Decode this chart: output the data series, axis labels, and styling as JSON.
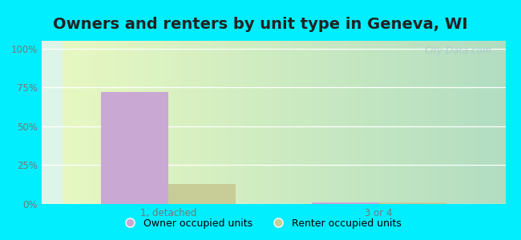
{
  "title": "Owners and renters by unit type in Geneva, WI",
  "categories": [
    "1, detached",
    "3 or 4"
  ],
  "owner_values": [
    72,
    1
  ],
  "renter_values": [
    13,
    1
  ],
  "owner_color": "#c9a8d4",
  "renter_color": "#c8cc96",
  "bg_top": "#e8faf0",
  "bg_bottom": "#d0f0e0",
  "outer_bg": "#00eeff",
  "yticks": [
    0,
    25,
    50,
    75,
    100
  ],
  "ytick_labels": [
    "0%",
    "25%",
    "50%",
    "75%",
    "100%"
  ],
  "ylim": [
    0,
    105
  ],
  "bar_width": 0.32,
  "legend_owner": "Owner occupied units",
  "legend_renter": "Renter occupied units",
  "title_fontsize": 14,
  "tick_fontsize": 8.5,
  "legend_fontsize": 9,
  "watermark": "City-Data.com",
  "title_color": "#222222",
  "tick_color": "#777777"
}
